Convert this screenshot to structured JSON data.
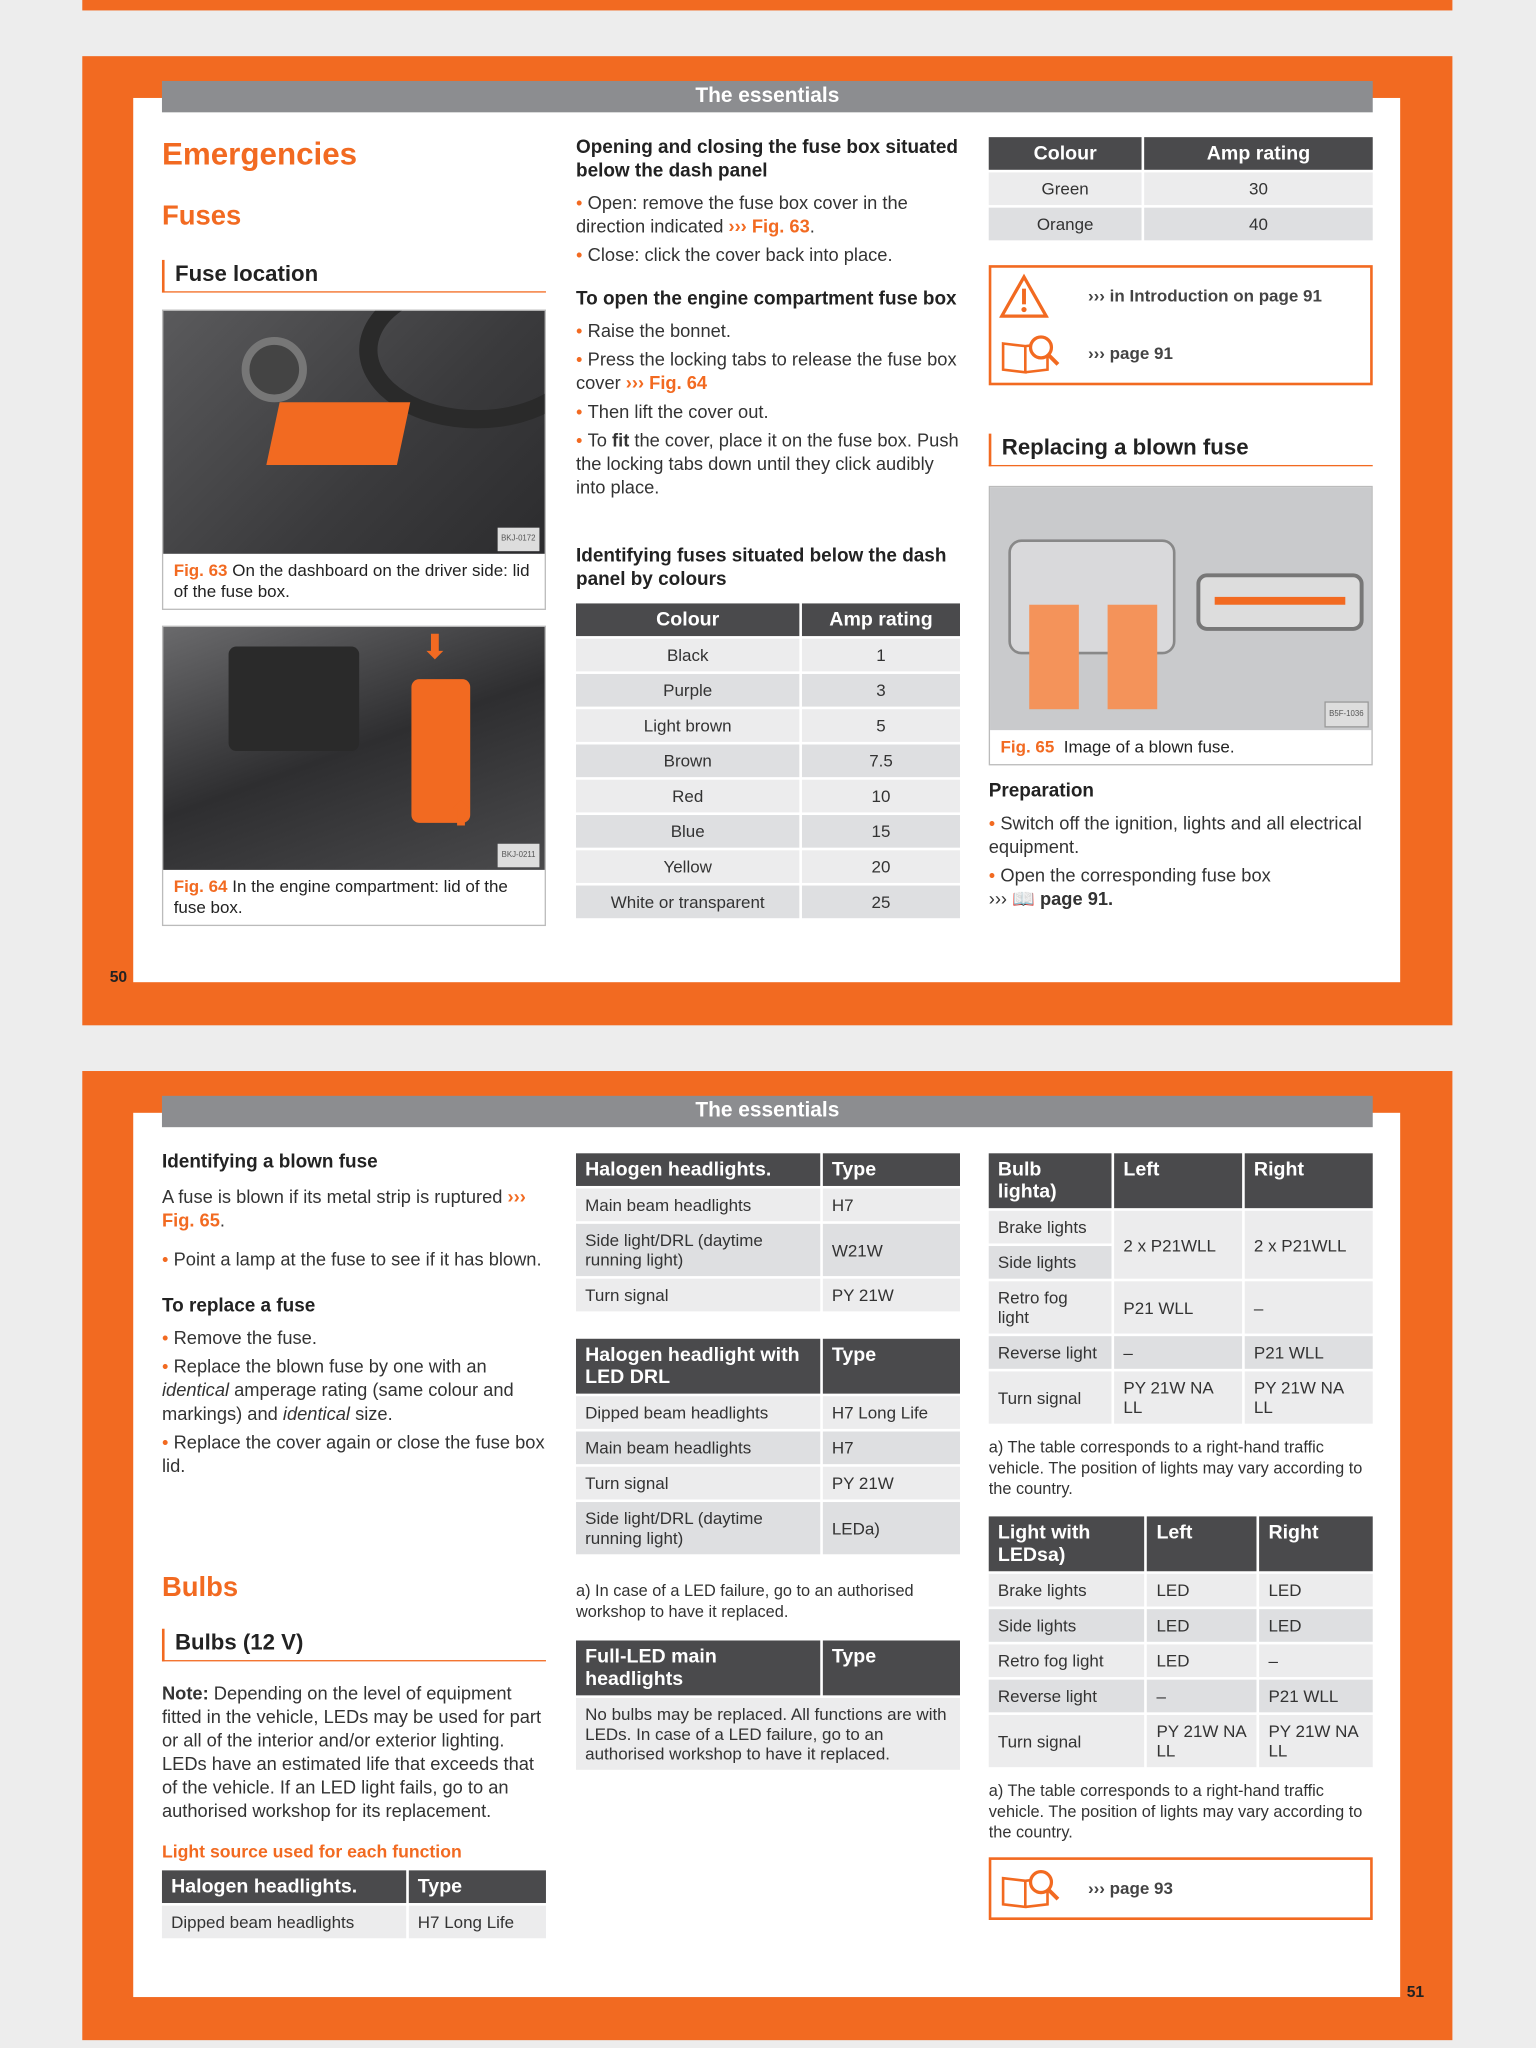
{
  "colors": {
    "accent": "#f26a21",
    "header_gray": "#8c8d90",
    "table_header": "#4a4a4c"
  },
  "page50": {
    "header": "The essentials",
    "page_number": "50",
    "title": "Emergencies",
    "section": "Fuses",
    "subsection": "Fuse location",
    "fig63": {
      "label": "Fig. 63",
      "caption": "On the dashboard on the driver side: lid of the fuse box.",
      "code": "BKJ-0172"
    },
    "fig64": {
      "label": "Fig. 64",
      "caption": "In the engine compartment: lid of the fuse box.",
      "code": "BKJ-0211"
    },
    "open_close": {
      "heading": "Opening and closing the fuse box situated below the dash panel",
      "open_text": "Open: remove the fuse box cover in the direction indicated ",
      "open_ref": "››› Fig. 63",
      "close_text": "Close: click the cover back into place."
    },
    "engine": {
      "heading": "To open the engine compartment fuse box",
      "b1": "Raise the bonnet.",
      "b2": "Press the locking tabs to release the fuse box cover ",
      "b2_ref": "››› Fig. 64",
      "b3": "Then lift the cover out.",
      "b4_pre": "To ",
      "b4_bold": "fit",
      "b4_post": " the cover, place it on the fuse box. Push the locking tabs down until they click audibly into place."
    },
    "identify_heading": "Identifying fuses situated below the dash panel by colours",
    "colour_table": {
      "headers": [
        "Colour",
        "Amp rating"
      ],
      "rows": [
        [
          "Black",
          "1"
        ],
        [
          "Purple",
          "3"
        ],
        [
          "Light brown",
          "5"
        ],
        [
          "Brown",
          "7.5"
        ],
        [
          "Red",
          "10"
        ],
        [
          "Blue",
          "15"
        ],
        [
          "Yellow",
          "20"
        ],
        [
          "White or transparent",
          "25"
        ]
      ]
    },
    "colour_table2": {
      "headers": [
        "Colour",
        "Amp rating"
      ],
      "rows": [
        [
          "Green",
          "30"
        ],
        [
          "Orange",
          "40"
        ]
      ]
    },
    "warning_box": {
      "warning_ref": "›››  in Introduction on page 91",
      "book_ref": "››› page 91",
      "icons": [
        "warning-triangle-icon",
        "book-magnifier-icon"
      ]
    },
    "replacing_heading": "Replacing a blown fuse",
    "fig65": {
      "label": "Fig. 65",
      "caption": "Image of a blown fuse.",
      "code": "B5F-1036"
    },
    "preparation": {
      "heading": "Preparation",
      "b1": "Switch off the ignition, lights and all electrical equipment.",
      "b2": "Open the corresponding fuse box",
      "b2_ref": "››› ",
      "b2_page": " page 91."
    }
  },
  "page51": {
    "header": "The essentials",
    "page_number": "51",
    "identify": {
      "heading": "Identifying a blown fuse",
      "text": "A fuse is blown if its metal strip is ruptured ",
      "ref": "››› Fig. 65",
      "suffix": ".",
      "b1": "Point a lamp at the fuse to see if it has blown."
    },
    "replace": {
      "heading": "To replace a fuse",
      "b1": "Remove the fuse.",
      "b2_a": "Replace the blown fuse by one with an ",
      "b2_i1": "identical",
      "b2_b": " amperage rating (same colour and markings) and ",
      "b2_i2": "identical",
      "b2_c": " size.",
      "b3": "Replace the cover again or close the fuse box lid."
    },
    "bulbs_title": "Bulbs",
    "bulbs_sub": "Bulbs (12 V)",
    "note_label": "Note:",
    "note_text": " Depending on the level of equipment fitted in the vehicle, LEDs may be used for part or all of the interior and/or exterior lighting. LEDs have an estimated life that exceeds that of the vehicle. If an LED light fails, go to an authorised workshop for its replacement.",
    "light_source_heading": "Light source used for each function",
    "table_halogen_a": {
      "headers": [
        "Halogen headlights.",
        "Type"
      ],
      "rows": [
        [
          "Dipped beam headlights",
          "H7 Long Life"
        ]
      ]
    },
    "table_halogen_b": {
      "headers": [
        "Halogen headlights.",
        "Type"
      ],
      "rows": [
        [
          "Main beam headlights",
          "H7"
        ],
        [
          "Side light/DRL (daytime running light)",
          "W21W"
        ],
        [
          "Turn signal",
          "PY 21W"
        ]
      ]
    },
    "table_halogen_led": {
      "headers": [
        "Halogen headlight with LED DRL",
        "Type"
      ],
      "rows": [
        [
          "Dipped beam headlights",
          "H7 Long Life"
        ],
        [
          "Main beam headlights",
          "H7"
        ],
        [
          "Turn signal",
          "PY 21W"
        ],
        [
          "Side light/DRL (daytime running light)",
          "LEDa)"
        ]
      ]
    },
    "footnote_led": "a) In case of a LED failure, go to an authorised workshop to have it replaced.",
    "table_full_led": {
      "headers": [
        "Full-LED main headlights",
        "Type"
      ],
      "rows": [
        [
          "No bulbs may be replaced. All functions are with LEDs. In case of a LED failure, go to an authorised workshop to have it replaced."
        ]
      ]
    },
    "table_bulb": {
      "headers": [
        "Bulb lighta)",
        "Left",
        "Right"
      ],
      "rows": [
        [
          "Brake lights",
          "2 x P21WLL",
          "2 x P21WLL"
        ],
        [
          "Side lights"
        ],
        [
          "Retro fog light",
          "P21 WLL",
          "–"
        ],
        [
          "Reverse light",
          "–",
          "P21 WLL"
        ],
        [
          "Turn signal",
          "PY 21W NA LL",
          "PY 21W NA LL"
        ]
      ]
    },
    "footnote_bulb": "a) The table corresponds to a right-hand traffic vehicle. The position of lights may vary according to the country.",
    "table_leds": {
      "headers": [
        "Light with LEDsa)",
        "Left",
        "Right"
      ],
      "rows": [
        [
          "Brake lights",
          "LED",
          "LED"
        ],
        [
          "Side lights",
          "LED",
          "LED"
        ],
        [
          "Retro fog light",
          "LED",
          "–"
        ],
        [
          "Reverse light",
          "–",
          "P21 WLL"
        ],
        [
          "Turn signal",
          "PY 21W NA LL",
          "PY 21W NA LL"
        ]
      ]
    },
    "footnote_leds": "a) The table corresponds to a right-hand traffic vehicle. The position of lights may vary according to the country.",
    "book_box": {
      "ref": "››› page 93",
      "icon": "book-magnifier-icon"
    }
  }
}
